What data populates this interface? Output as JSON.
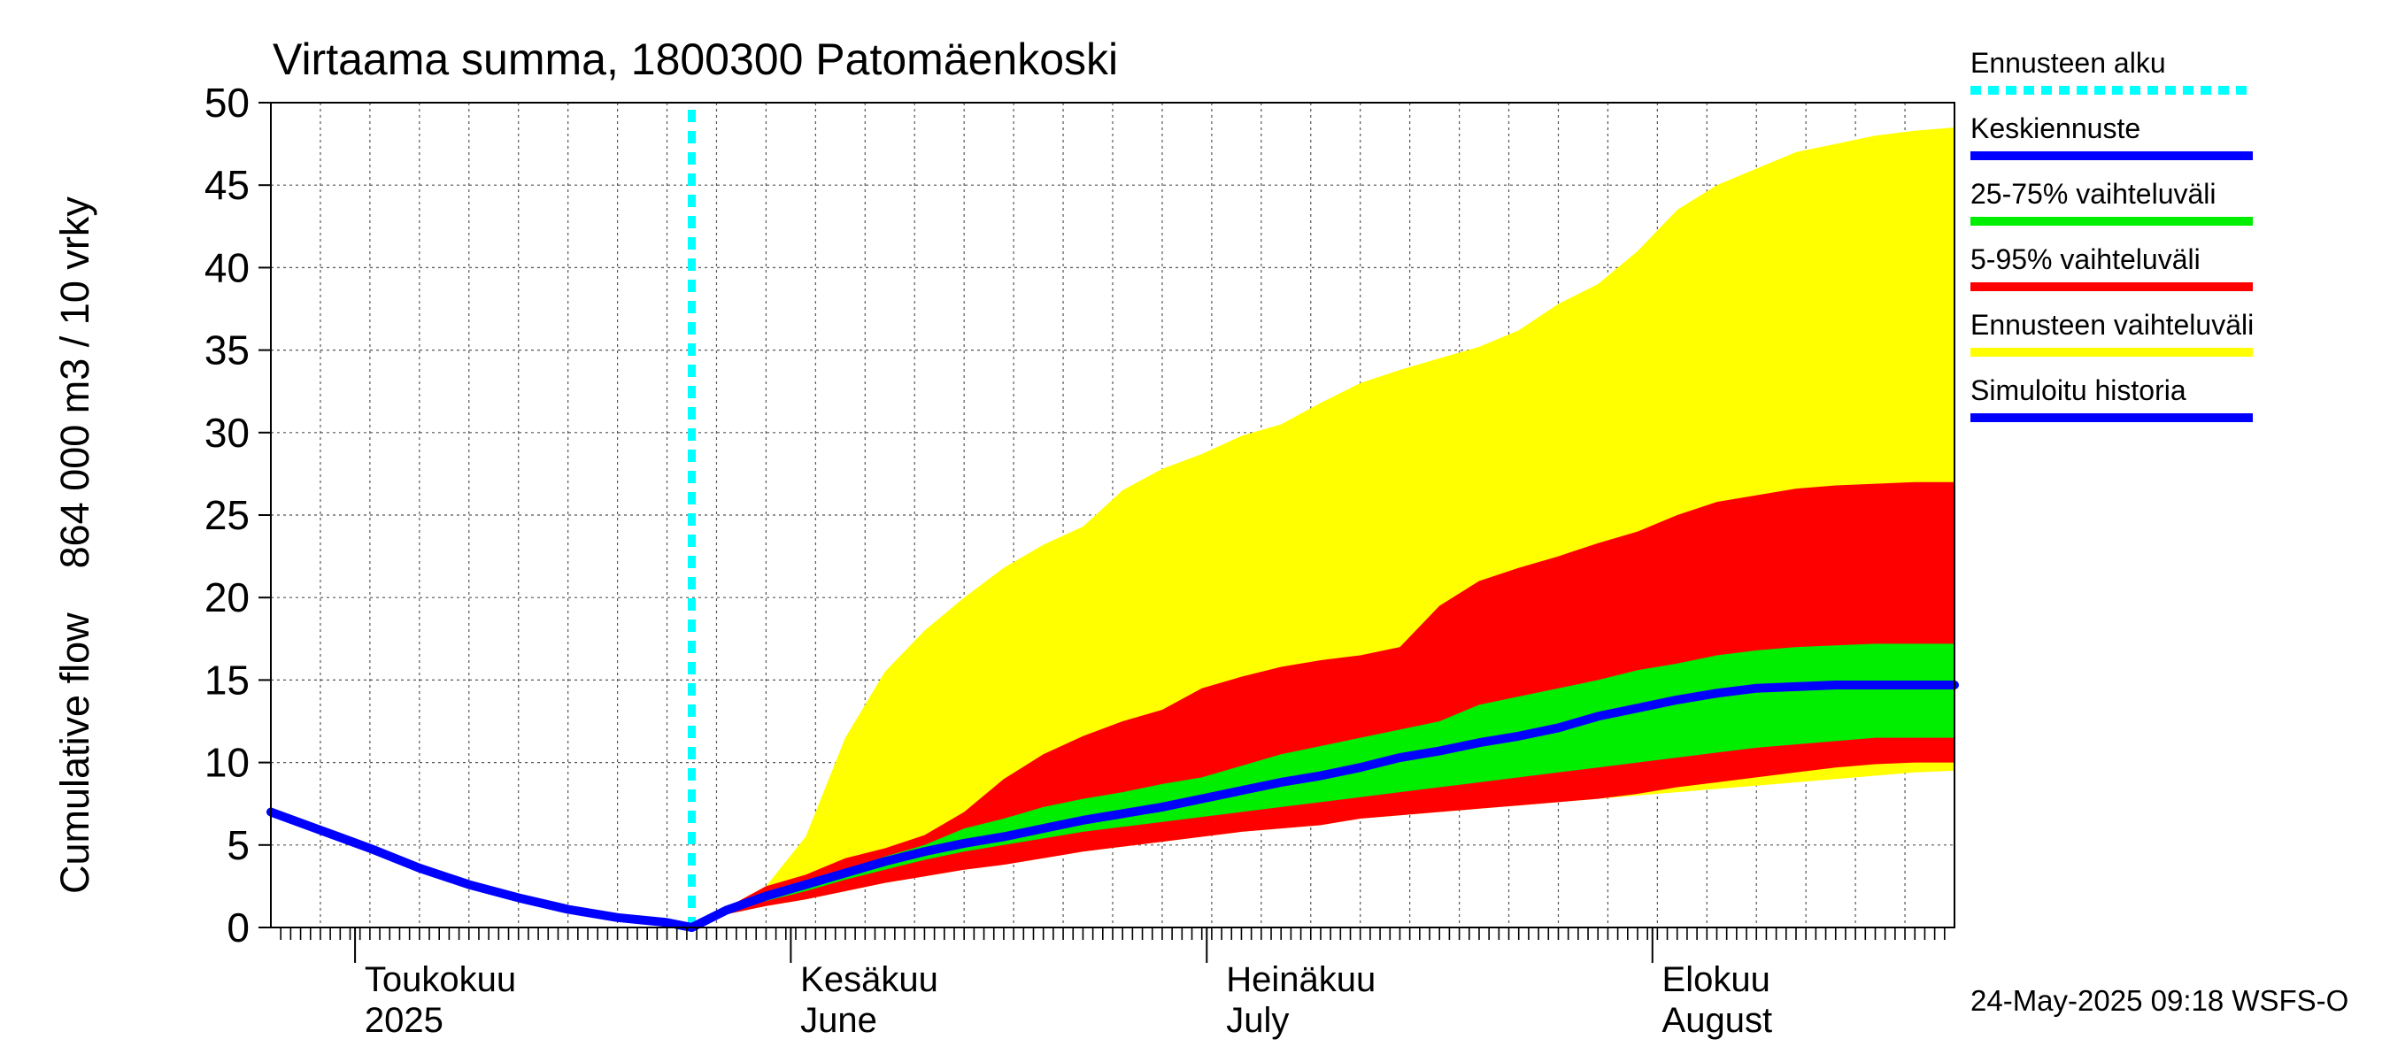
{
  "chart_data": {
    "type": "area",
    "title": "Virtaama summa, 1800300 Patomäenkoski",
    "ylabel": "Cumulative flow    864 000 m3 / 10 vrky",
    "ylim": [
      0,
      50
    ],
    "yticks": [
      0,
      5,
      10,
      15,
      20,
      25,
      30,
      35,
      40,
      45,
      50
    ],
    "x_unit": "days from 2025-04-01",
    "xlim": [
      0,
      170
    ],
    "forecast_start_x": 42.5,
    "months": [
      {
        "x": 0,
        "label1": "",
        "label2": ""
      },
      {
        "x": 10,
        "label1": "Toukokuu",
        "label2": "2025"
      },
      {
        "x": 54,
        "label1": "Kesäkuu",
        "label2": "June"
      },
      {
        "x": 97,
        "label1": "Heinäkuu",
        "label2": "July"
      },
      {
        "x": 141,
        "label1": "Elokuu",
        "label2": "August"
      }
    ],
    "month_boundaries": [
      8.5,
      52.5,
      94.5,
      139.5
    ],
    "history": {
      "name": "Simuloitu historia",
      "x": [
        0,
        5,
        10,
        15,
        20,
        25,
        30,
        35,
        40,
        42.5
      ],
      "y": [
        7.0,
        5.9,
        4.8,
        3.6,
        2.6,
        1.8,
        1.1,
        0.6,
        0.3,
        0.0
      ]
    },
    "forecast_x": [
      42.5,
      46,
      50,
      54,
      58,
      62,
      66,
      70,
      74,
      78,
      82,
      86,
      90,
      94,
      98,
      102,
      106,
      110,
      114,
      118,
      122,
      126,
      130,
      134,
      138,
      142,
      146,
      150,
      154,
      158,
      162,
      166,
      170
    ],
    "bands": [
      {
        "name": "Ennusteen vaihteluväli",
        "color": "#ffff00",
        "lower": [
          0,
          0.8,
          1.3,
          1.7,
          2.2,
          2.7,
          3.1,
          3.5,
          3.8,
          4.2,
          4.6,
          4.9,
          5.2,
          5.5,
          5.8,
          6.0,
          6.2,
          6.6,
          6.8,
          7.0,
          7.2,
          7.4,
          7.6,
          7.8,
          8.0,
          8.2,
          8.4,
          8.6,
          8.8,
          9.0,
          9.2,
          9.4,
          9.5
        ],
        "upper": [
          0,
          1.2,
          2.5,
          5.5,
          11.5,
          15.5,
          18.0,
          20.0,
          21.8,
          23.2,
          24.3,
          26.5,
          27.8,
          28.7,
          29.8,
          30.5,
          31.8,
          33.0,
          33.8,
          34.5,
          35.2,
          36.2,
          37.8,
          39.0,
          41.0,
          43.5,
          45.0,
          46.0,
          47.0,
          47.5,
          48.0,
          48.3,
          48.5
        ]
      },
      {
        "name": "5-95% vaihteluväli",
        "color": "#ff0000",
        "lower": [
          0,
          0.8,
          1.3,
          1.7,
          2.2,
          2.7,
          3.1,
          3.5,
          3.8,
          4.2,
          4.6,
          4.9,
          5.2,
          5.5,
          5.8,
          6.0,
          6.2,
          6.6,
          6.8,
          7.0,
          7.2,
          7.4,
          7.6,
          7.8,
          8.1,
          8.5,
          8.8,
          9.1,
          9.4,
          9.7,
          9.9,
          10.0,
          10.0
        ],
        "upper": [
          0,
          1.2,
          2.5,
          3.2,
          4.2,
          4.8,
          5.6,
          7.0,
          9.0,
          10.5,
          11.6,
          12.5,
          13.2,
          14.5,
          15.2,
          15.8,
          16.2,
          16.5,
          17.0,
          19.5,
          21.0,
          21.8,
          22.5,
          23.3,
          24.0,
          25.0,
          25.8,
          26.2,
          26.6,
          26.8,
          26.9,
          27.0,
          27.0
        ]
      },
      {
        "name": "25-75% vaihteluväli",
        "color": "#00ee00",
        "lower": [
          0,
          1.0,
          1.6,
          2.2,
          2.9,
          3.5,
          4.1,
          4.6,
          5.0,
          5.4,
          5.8,
          6.1,
          6.4,
          6.7,
          7.0,
          7.3,
          7.6,
          7.9,
          8.2,
          8.5,
          8.8,
          9.1,
          9.4,
          9.7,
          10.0,
          10.3,
          10.6,
          10.9,
          11.1,
          11.3,
          11.5,
          11.5,
          11.5
        ],
        "upper": [
          0,
          1.1,
          2.0,
          2.7,
          3.5,
          4.3,
          5.0,
          6.0,
          6.6,
          7.3,
          7.8,
          8.2,
          8.7,
          9.1,
          9.8,
          10.5,
          11.0,
          11.5,
          12.0,
          12.5,
          13.5,
          14.0,
          14.5,
          15.0,
          15.6,
          16.0,
          16.5,
          16.8,
          17.0,
          17.1,
          17.2,
          17.2,
          17.2
        ]
      }
    ],
    "median": {
      "name": "Keskiennuste",
      "color": "#0000ff",
      "y": [
        0,
        1.05,
        1.9,
        2.6,
        3.3,
        4.0,
        4.6,
        5.1,
        5.5,
        6.0,
        6.5,
        6.9,
        7.3,
        7.8,
        8.3,
        8.8,
        9.2,
        9.7,
        10.3,
        10.7,
        11.2,
        11.6,
        12.1,
        12.8,
        13.3,
        13.8,
        14.2,
        14.5,
        14.6,
        14.7,
        14.7,
        14.7,
        14.7
      ]
    },
    "legend": [
      {
        "label": "Ennusteen alku",
        "color": "#00ffff",
        "style": "dotted"
      },
      {
        "label": "Keskiennuste",
        "color": "#0000ff",
        "style": "solid"
      },
      {
        "label": "25-75% vaihteluväli",
        "color": "#00ee00",
        "style": "solid"
      },
      {
        "label": "5-95% vaihteluväli",
        "color": "#ff0000",
        "style": "solid"
      },
      {
        "label": "Ennusteen vaihteluväli",
        "color": "#ffff00",
        "style": "solid"
      },
      {
        "label": "Simuloitu historia",
        "color": "#0000ff",
        "style": "solid"
      }
    ],
    "legend_position": "right",
    "footer": "24-May-2025 09:18 WSFS-O"
  }
}
